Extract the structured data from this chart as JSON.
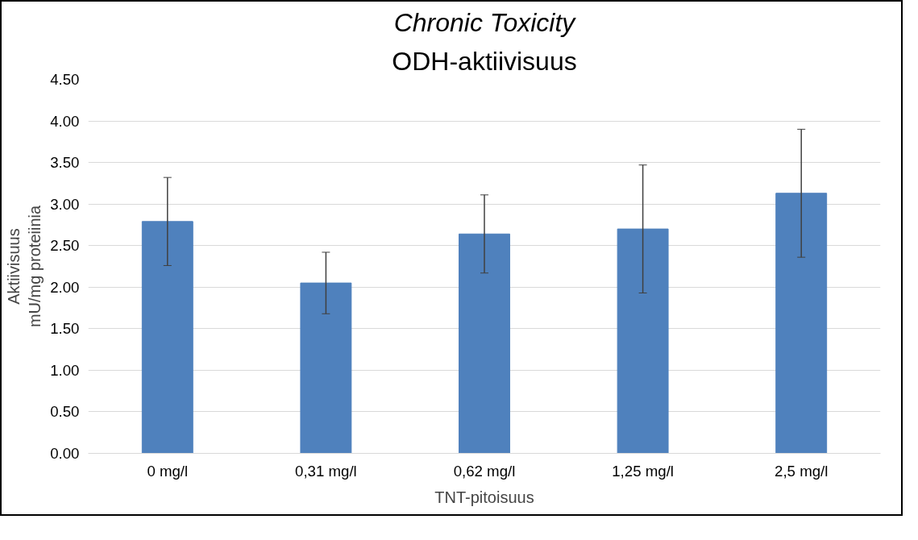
{
  "chart_data": {
    "type": "bar",
    "title": "Chronic Toxicity",
    "subtitle": "ODH-aktiivisuus",
    "xlabel": "TNT-pitoisuus",
    "ylabel": "Aktiivisuus\nmU/mg proteiinia",
    "categories": [
      "0 mg/l",
      "0,31 mg/l",
      "0,62 mg/l",
      "1,25 mg/l",
      "2,5 mg/l"
    ],
    "values": [
      2.79,
      2.05,
      2.64,
      2.7,
      3.13
    ],
    "errors": [
      0.53,
      0.37,
      0.47,
      0.77,
      0.77
    ],
    "color": "#4f81bd",
    "ylim": [
      0,
      4.5
    ],
    "yticks": [
      {
        "value": 0,
        "label": "0.00"
      },
      {
        "value": 0.5,
        "label": "0.50"
      },
      {
        "value": 1,
        "label": "1.00"
      },
      {
        "value": 1.5,
        "label": "1.50"
      },
      {
        "value": 2,
        "label": "2.00"
      },
      {
        "value": 2.5,
        "label": "2.50"
      },
      {
        "value": 3,
        "label": "3.00"
      },
      {
        "value": 3.5,
        "label": "3.50"
      },
      {
        "value": 4,
        "label": "4.00"
      },
      {
        "value": 4.5,
        "label": "4.50"
      }
    ],
    "grid": "y"
  }
}
